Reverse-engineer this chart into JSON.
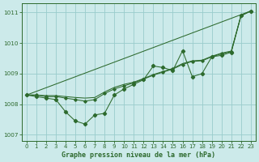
{
  "title": "Graphe pression niveau de la mer (hPa)",
  "bg_color": "#cceaea",
  "grid_color": "#99cccc",
  "line_color": "#2d6a2d",
  "xlim": [
    -0.5,
    23.5
  ],
  "ylim": [
    1006.8,
    1011.3
  ],
  "yticks": [
    1007,
    1008,
    1009,
    1010,
    1011
  ],
  "xticks": [
    0,
    1,
    2,
    3,
    4,
    5,
    6,
    7,
    8,
    9,
    10,
    11,
    12,
    13,
    14,
    15,
    16,
    17,
    18,
    19,
    20,
    21,
    22,
    23
  ],
  "xticklabels": [
    "0",
    "1",
    "2",
    "3",
    "4",
    "5",
    "6",
    "7",
    "8",
    "9",
    "10",
    "11",
    "12",
    "13",
    "14",
    "15",
    "16",
    "17",
    "18",
    "19",
    "20",
    "21",
    "22",
    "23"
  ],
  "series_main": [
    1008.3,
    1008.25,
    1008.2,
    1008.15,
    1007.75,
    1007.45,
    1007.35,
    1007.65,
    1007.7,
    1008.3,
    1008.5,
    1008.65,
    1008.8,
    1009.25,
    1009.2,
    1009.1,
    1009.75,
    1008.9,
    1009.0,
    1009.55,
    1009.6,
    1009.7,
    1010.9,
    1011.05
  ],
  "series_smooth1": [
    1008.3,
    1008.3,
    1008.25,
    1008.25,
    1008.2,
    1008.15,
    1008.1,
    1008.15,
    1008.35,
    1008.5,
    1008.6,
    1008.7,
    1008.82,
    1008.95,
    1009.05,
    1009.15,
    1009.3,
    1009.4,
    1009.42,
    1009.55,
    1009.65,
    1009.72,
    1010.9,
    1011.05
  ],
  "series_smooth2": [
    1008.3,
    1008.3,
    1008.28,
    1008.28,
    1008.25,
    1008.22,
    1008.2,
    1008.22,
    1008.4,
    1008.55,
    1008.65,
    1008.72,
    1008.84,
    1008.97,
    1009.07,
    1009.17,
    1009.33,
    1009.42,
    1009.44,
    1009.57,
    1009.67,
    1009.74,
    1010.9,
    1011.05
  ],
  "series_diagonal": [
    [
      0,
      23
    ],
    [
      1008.3,
      1011.05
    ]
  ]
}
